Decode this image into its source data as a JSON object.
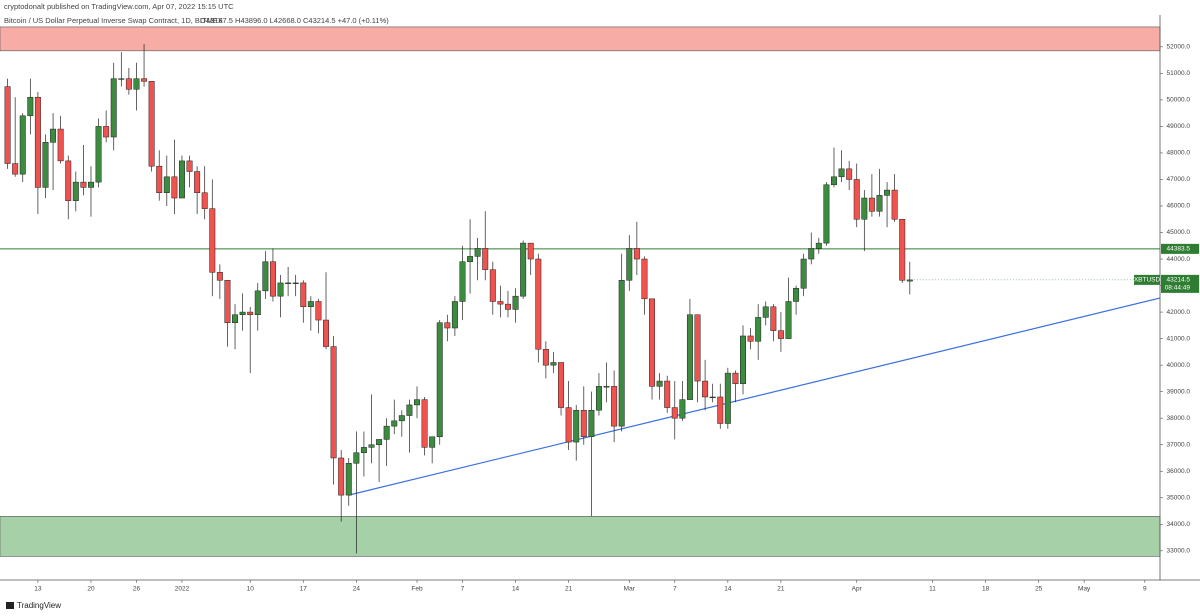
{
  "header": {
    "author_line": "cryptodonalt published on TradingView.com, Apr 07, 2022 15:15 UTC"
  },
  "footer": {
    "brand": "TradingView"
  },
  "chart_data": {
    "type": "candlestick",
    "title": "Bitcoin / US Dollar Perpetual Inverse Swap Contract, 1D, BITMEX",
    "legend_values": "O43167.5 H43896.0 L42668.0 C43214.5 +47.0 (+0.11%)",
    "up_color": "#3d8b40",
    "down_color": "#ef5350",
    "open": [
      50500,
      47600,
      47200,
      49400,
      50100,
      46700,
      48400,
      48900,
      47700,
      46200,
      46900,
      46700,
      46900,
      49000,
      48600,
      50800,
      50800,
      50400,
      50800,
      50700,
      47500,
      46500,
      47100,
      46300,
      47700,
      47300,
      46500,
      45900,
      43500,
      43200,
      41600,
      41900,
      42000,
      41900,
      42800,
      43900,
      42600,
      43100,
      43100,
      43100,
      42200,
      42400,
      41700,
      40700,
      36500,
      35100,
      36300,
      36700,
      36900,
      37000,
      37200,
      37700,
      37900,
      38100,
      38500,
      38700,
      36900,
      37300,
      41600,
      41400,
      42400,
      43900,
      44100,
      44400,
      43600,
      42400,
      42300,
      42100,
      42600,
      44600,
      44000,
      40600,
      40000,
      40100,
      38400,
      37100,
      38300,
      37300,
      38300,
      39200,
      39200,
      37700,
      43200,
      44400,
      44000,
      42500,
      39200,
      39400,
      38400,
      38000,
      38700,
      41900,
      39400,
      38800,
      38800,
      37800,
      39700,
      39300,
      41100,
      40900,
      41800,
      42200,
      41300,
      41000,
      42400,
      42900,
      44000,
      44400,
      44600,
      46800,
      47100,
      47400,
      47000,
      45500,
      46300,
      45800,
      46400,
      46600,
      45500,
      43167.5
    ],
    "high": [
      50800,
      50100,
      49500,
      50800,
      50300,
      48700,
      49500,
      49400,
      47900,
      47300,
      48300,
      47500,
      49300,
      49600,
      51400,
      51800,
      51200,
      51400,
      52100,
      50700,
      48100,
      47900,
      48500,
      47900,
      47900,
      47500,
      47500,
      47000,
      43800,
      43200,
      42300,
      42700,
      42200,
      43100,
      44300,
      44400,
      43400,
      43700,
      43400,
      43200,
      42600,
      42500,
      43500,
      41100,
      36800,
      36500,
      37500,
      37500,
      38900,
      37200,
      38000,
      38700,
      38300,
      38700,
      39200,
      38800,
      37300,
      41700,
      41900,
      42600,
      44500,
      45500,
      44800,
      45800,
      43900,
      43000,
      42800,
      42900,
      44700,
      44600,
      44200,
      40900,
      40500,
      40100,
      39400,
      38500,
      39200,
      39000,
      39700,
      40100,
      39800,
      44200,
      44900,
      45400,
      44100,
      42500,
      39700,
      39600,
      39400,
      39400,
      42500,
      41900,
      40200,
      39300,
      39300,
      39900,
      39800,
      41500,
      41400,
      42300,
      42400,
      42300,
      42000,
      43300,
      43000,
      44200,
      45000,
      44800,
      46900,
      48200,
      48100,
      47700,
      47600,
      46600,
      47200,
      47400,
      46900,
      47200,
      45500,
      43896
    ],
    "low": [
      47400,
      47100,
      46900,
      48700,
      45700,
      46300,
      46600,
      47600,
      45500,
      45800,
      46400,
      45600,
      46700,
      48400,
      48100,
      50500,
      50200,
      49600,
      50500,
      47300,
      46200,
      46000,
      45700,
      46300,
      46700,
      45700,
      45500,
      42600,
      42500,
      40700,
      40600,
      41300,
      39700,
      41300,
      42500,
      42400,
      41800,
      42600,
      42600,
      41600,
      41300,
      41200,
      40600,
      35500,
      34100,
      34700,
      32900,
      35800,
      36300,
      35600,
      36200,
      37400,
      37300,
      36700,
      38000,
      36600,
      36300,
      37000,
      40900,
      41100,
      41700,
      42700,
      43200,
      43200,
      41900,
      41800,
      41800,
      41600,
      42500,
      43400,
      40100,
      39500,
      39700,
      38100,
      36800,
      36400,
      37000,
      34300,
      38100,
      38600,
      37100,
      37500,
      42800,
      43400,
      41900,
      38700,
      38700,
      38200,
      37200,
      37900,
      38700,
      38600,
      38300,
      38600,
      37600,
      37600,
      38600,
      38900,
      40600,
      40200,
      41500,
      40900,
      40500,
      41000,
      41900,
      42600,
      43800,
      44200,
      44500,
      46700,
      46900,
      46600,
      45200,
      44300,
      45600,
      45600,
      45200,
      45400,
      43100,
      42668
    ],
    "close": [
      47600,
      47200,
      49400,
      50100,
      46700,
      48400,
      48900,
      47700,
      46200,
      46900,
      46700,
      46900,
      49000,
      48600,
      50800,
      50800,
      50400,
      50800,
      50700,
      47500,
      46500,
      47100,
      46300,
      47700,
      47300,
      46500,
      45900,
      43500,
      43200,
      41600,
      41900,
      42000,
      41900,
      42800,
      43900,
      42600,
      43100,
      43100,
      43100,
      42200,
      42400,
      41700,
      40700,
      36500,
      35100,
      36300,
      36700,
      36900,
      37000,
      37200,
      37700,
      37900,
      38100,
      38500,
      38700,
      36900,
      37300,
      41600,
      41400,
      42400,
      43900,
      44100,
      44400,
      43600,
      42400,
      42300,
      42100,
      42600,
      44600,
      44000,
      40600,
      40000,
      40100,
      38400,
      37100,
      38300,
      37300,
      38300,
      39200,
      39200,
      37700,
      43200,
      44400,
      44000,
      42500,
      39200,
      39400,
      38400,
      38000,
      38700,
      41900,
      39400,
      38800,
      38800,
      37800,
      39700,
      39300,
      41100,
      40900,
      41800,
      42200,
      41300,
      41000,
      42400,
      42900,
      44000,
      44400,
      44600,
      46800,
      47100,
      47400,
      47000,
      45500,
      46300,
      45800,
      46400,
      46600,
      45500,
      43200,
      43214.5
    ],
    "xlim": [
      -1,
      152
    ],
    "xticks": [
      {
        "value": 4,
        "label": "13"
      },
      {
        "value": 11,
        "label": "20"
      },
      {
        "value": 17,
        "label": "26"
      },
      {
        "value": 23,
        "label": "2022"
      },
      {
        "value": 32,
        "label": "10"
      },
      {
        "value": 39,
        "label": "17"
      },
      {
        "value": 46,
        "label": "24"
      },
      {
        "value": 54,
        "label": "Feb"
      },
      {
        "value": 60,
        "label": "7"
      },
      {
        "value": 67,
        "label": "14"
      },
      {
        "value": 74,
        "label": "21"
      },
      {
        "value": 82,
        "label": "Mar"
      },
      {
        "value": 88,
        "label": "7"
      },
      {
        "value": 95,
        "label": "14"
      },
      {
        "value": 102,
        "label": "21"
      },
      {
        "value": 112,
        "label": "Apr"
      },
      {
        "value": 122,
        "label": "11"
      },
      {
        "value": 129,
        "label": "18"
      },
      {
        "value": 136,
        "label": "25"
      },
      {
        "value": 142,
        "label": "May"
      },
      {
        "value": 150,
        "label": "9"
      }
    ],
    "ylim": [
      31900,
      53200
    ],
    "yticks": [
      {
        "value": 33000,
        "label": "33000.0"
      },
      {
        "value": 34000,
        "label": "34000.0"
      },
      {
        "value": 35000,
        "label": "35000.0"
      },
      {
        "value": 36000,
        "label": "36000.0"
      },
      {
        "value": 37000,
        "label": "37000.0"
      },
      {
        "value": 38000,
        "label": "38000.0"
      },
      {
        "value": 39000,
        "label": "39000.0"
      },
      {
        "value": 40000,
        "label": "40000.0"
      },
      {
        "value": 41000,
        "label": "41000.0"
      },
      {
        "value": 42000,
        "label": "42000.0"
      },
      {
        "value": 43000,
        "label": "43000.0"
      },
      {
        "value": 44000,
        "label": "44000.0"
      },
      {
        "value": 45000,
        "label": "45000.0"
      },
      {
        "value": 46000,
        "label": "46000.0"
      },
      {
        "value": 47000,
        "label": "47000.0"
      },
      {
        "value": 48000,
        "label": "48000.0"
      },
      {
        "value": 49000,
        "label": "49000.0"
      },
      {
        "value": 50000,
        "label": "50000.0"
      },
      {
        "value": 51000,
        "label": "51000.0"
      },
      {
        "value": 52000,
        "label": "52000.0"
      }
    ],
    "grid": false,
    "zones": [
      {
        "low": 51850,
        "high": 52750,
        "color": "#f8aca6"
      },
      {
        "low": 32790,
        "high": 34300,
        "color": "#a5d0a8"
      }
    ],
    "level_line": {
      "value": 44383.5,
      "label": "44383.5",
      "color": "#2e7d32"
    },
    "trendline": {
      "x": [
        45,
        152
      ],
      "y": [
        35100,
        42530
      ],
      "color": "#3a6fe0"
    },
    "last_price": {
      "symbol": "XBTUSD",
      "label": "43214.5",
      "value": 43214.5,
      "countdown": "08:44:49",
      "color": "#2e7d32"
    }
  }
}
